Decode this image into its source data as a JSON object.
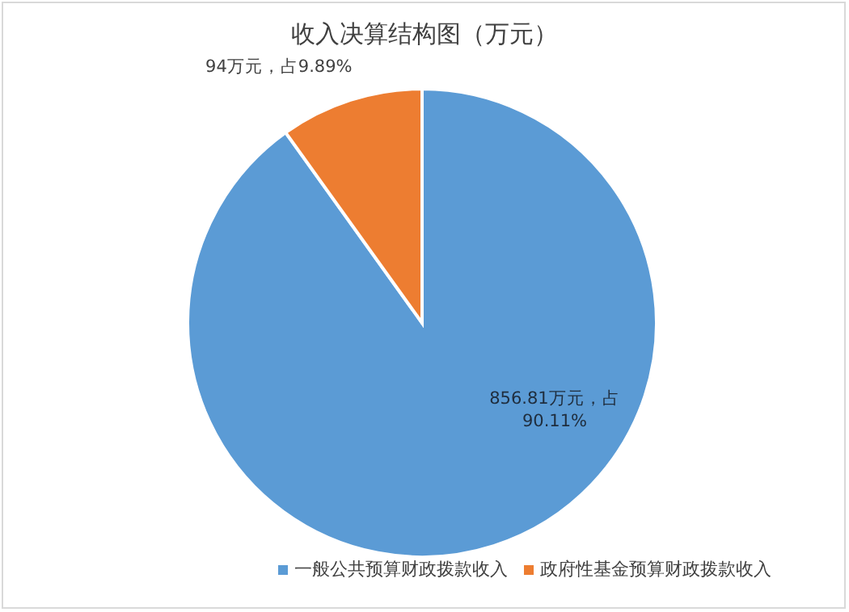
{
  "chart_data": {
    "type": "pie",
    "title": "收入决算结构图（万元）",
    "categories": [
      "一般公共预算财政拨款收入",
      "政府性基金预算财政拨款收入"
    ],
    "values": [
      856.81,
      94
    ],
    "colors": [
      "#5b9bd5",
      "#ed7d31"
    ],
    "value_labels": [
      "856.81万元，占90.11%",
      "94万元，占9.89%"
    ],
    "legend": "bottom"
  }
}
